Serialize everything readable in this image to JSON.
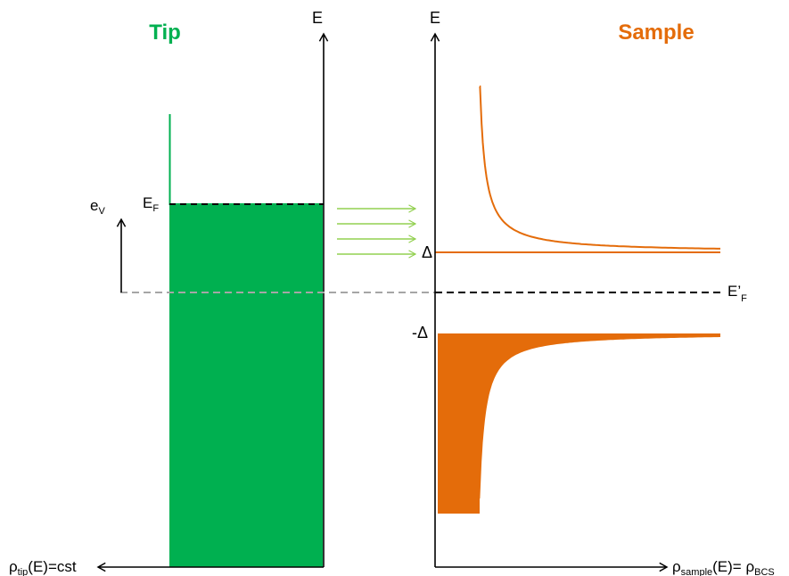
{
  "titles": {
    "tip": "Tip",
    "sample": "Sample"
  },
  "labels": {
    "tip_energy_axis": "E",
    "sample_energy_axis": "E",
    "fermi_tip_main": "E",
    "fermi_tip_sub": "F",
    "bias_main": "e",
    "bias_sub": "V",
    "delta_pos": "Δ",
    "delta_neg": "-Δ",
    "fermi_sample_main": "E’",
    "fermi_sample_sub": "F",
    "tip_dos_rho": "ρ",
    "tip_dos_sub": "tip",
    "tip_dos_rest": "(E)=cst",
    "sample_dos_rho": "ρ",
    "sample_dos_sub": "sample",
    "sample_dos_mid": "(E)= ρ",
    "sample_dos_sub2": "BCS"
  },
  "colors": {
    "tip": "#00b050",
    "sample": "#e46c0a",
    "arrow": "#92d050",
    "dashed_gray": "#a6a6a6",
    "axis": "#000000"
  }
}
